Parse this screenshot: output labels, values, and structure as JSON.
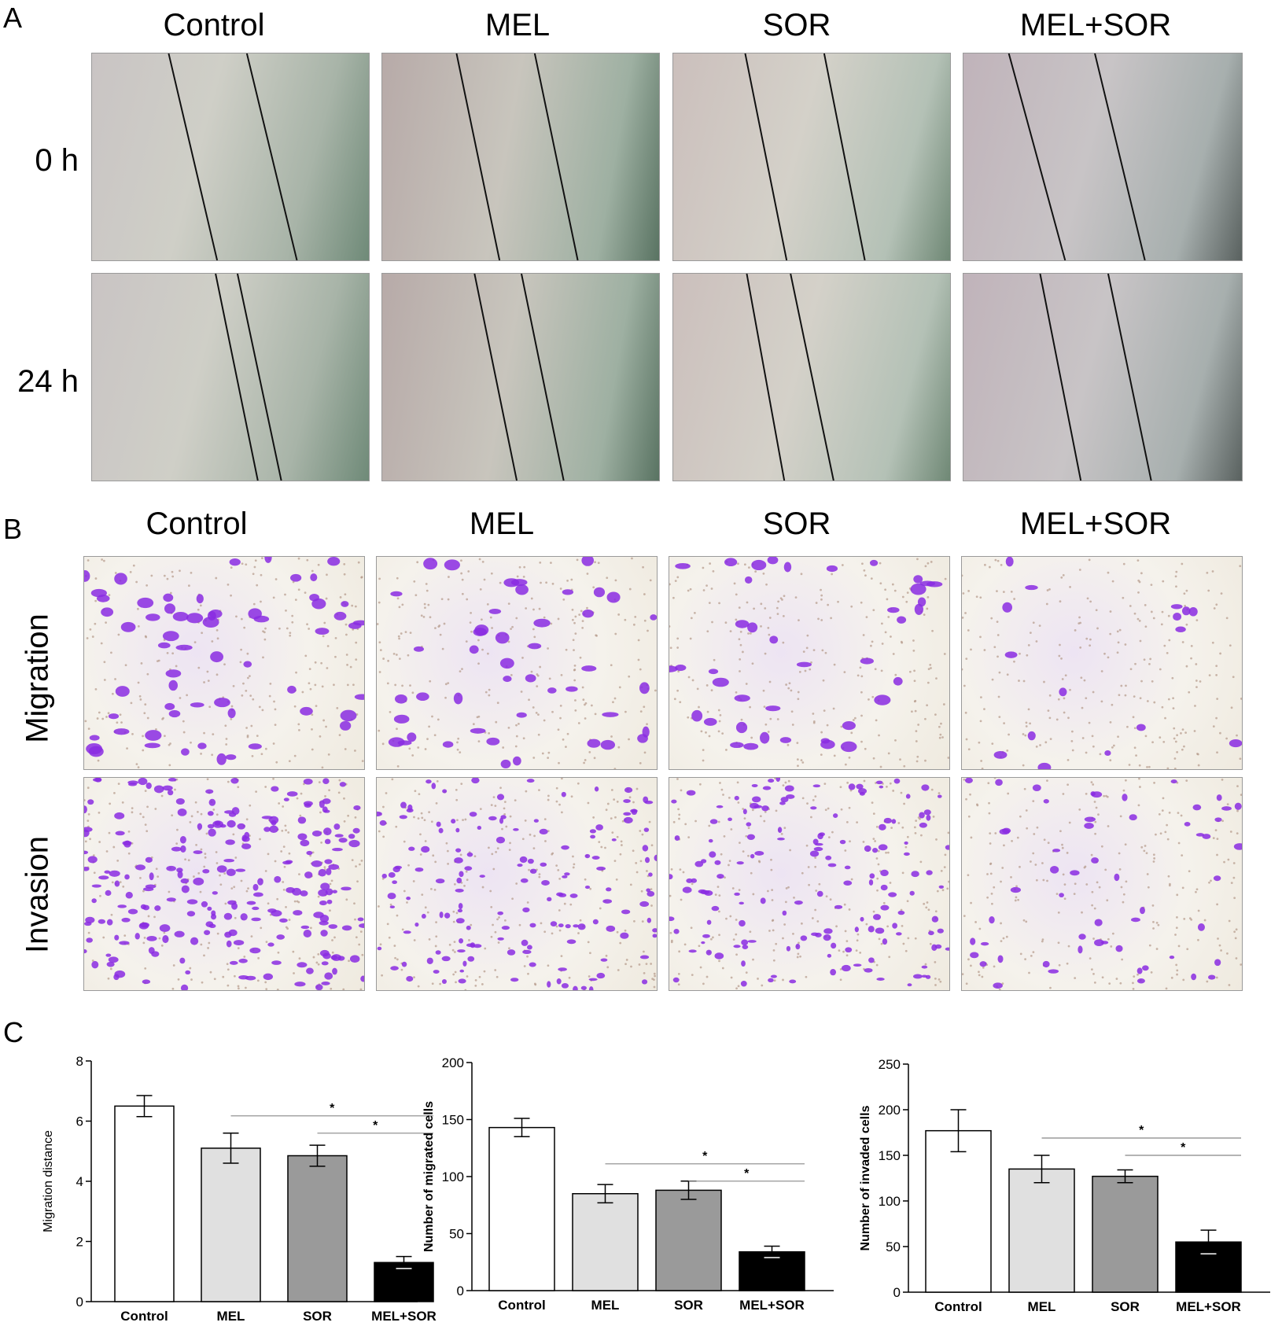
{
  "panels": {
    "a": "A",
    "b": "B",
    "c": "C"
  },
  "panel_a": {
    "columns": [
      "Control",
      "MEL",
      "SOR",
      "MEL+SOR"
    ],
    "rows": [
      "0 h",
      "24 h"
    ]
  },
  "panel_b": {
    "columns": [
      "Control",
      "MEL",
      "SOR",
      "MEL+SOR"
    ],
    "rows": [
      "Migration",
      "Invasion"
    ]
  },
  "colors": {
    "Control": "#ffffff",
    "MEL": "#e0e0e0",
    "SOR": "#9a9a9a",
    "MEL+SOR": "#000000",
    "stain": "#8a2be2"
  },
  "chart_data": [
    {
      "type": "bar",
      "categories": [
        "Control",
        "MEL",
        "SOR",
        "MEL+SOR"
      ],
      "values": [
        6.5,
        5.1,
        4.85,
        1.3
      ],
      "errors": [
        0.35,
        0.5,
        0.35,
        0.2
      ],
      "ylabel": "Migration distance",
      "ylim": [
        0,
        8
      ],
      "yticks": [
        0,
        2,
        4,
        6,
        8
      ],
      "significance": [
        {
          "from": "MEL",
          "to": "MEL+SOR",
          "label": "*"
        },
        {
          "from": "SOR",
          "to": "MEL+SOR",
          "label": "*"
        }
      ]
    },
    {
      "type": "bar",
      "categories": [
        "Control",
        "MEL",
        "SOR",
        "MEL+SOR"
      ],
      "values": [
        143,
        85,
        88,
        34
      ],
      "errors": [
        8,
        8,
        8,
        5
      ],
      "ylabel": "Number of migrated cells",
      "ylim": [
        0,
        200
      ],
      "yticks": [
        0,
        50,
        100,
        150,
        200
      ],
      "significance": [
        {
          "from": "MEL",
          "to": "MEL+SOR",
          "label": "*"
        },
        {
          "from": "SOR",
          "to": "MEL+SOR",
          "label": "*"
        }
      ]
    },
    {
      "type": "bar",
      "categories": [
        "Control",
        "MEL",
        "SOR",
        "MEL+SOR"
      ],
      "values": [
        177,
        135,
        127,
        55
      ],
      "errors": [
        23,
        15,
        7,
        13
      ],
      "ylabel": "Number of invaded cells",
      "ylim": [
        0,
        250
      ],
      "yticks": [
        0,
        50,
        100,
        150,
        200,
        250
      ],
      "significance": [
        {
          "from": "MEL",
          "to": "MEL+SOR",
          "label": "*"
        },
        {
          "from": "SOR",
          "to": "MEL+SOR",
          "label": "*"
        }
      ]
    }
  ]
}
